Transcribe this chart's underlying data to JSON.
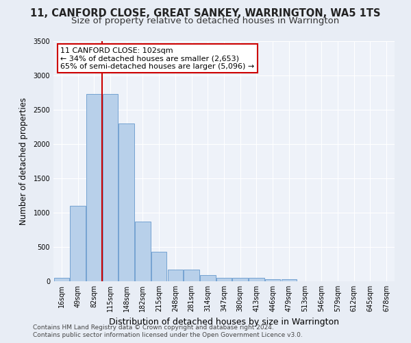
{
  "title": "11, CANFORD CLOSE, GREAT SANKEY, WARRINGTON, WA5 1TS",
  "subtitle": "Size of property relative to detached houses in Warrington",
  "xlabel": "Distribution of detached houses by size in Warrington",
  "ylabel": "Number of detached properties",
  "bar_labels": [
    "16sqm",
    "49sqm",
    "82sqm",
    "115sqm",
    "148sqm",
    "182sqm",
    "215sqm",
    "248sqm",
    "281sqm",
    "314sqm",
    "347sqm",
    "380sqm",
    "413sqm",
    "446sqm",
    "479sqm",
    "513sqm",
    "546sqm",
    "579sqm",
    "612sqm",
    "645sqm",
    "678sqm"
  ],
  "bar_values": [
    50,
    1100,
    2730,
    2730,
    2300,
    870,
    430,
    175,
    175,
    95,
    55,
    55,
    55,
    35,
    30,
    0,
    0,
    0,
    0,
    0,
    0
  ],
  "bar_color": "#b8d0ea",
  "bar_edge_color": "#6699cc",
  "vline_color": "#cc0000",
  "vline_x": 2.5,
  "annotation_text": "11 CANFORD CLOSE: 102sqm\n← 34% of detached houses are smaller (2,653)\n65% of semi-detached houses are larger (5,096) →",
  "annotation_box_facecolor": "#ffffff",
  "annotation_box_edgecolor": "#cc0000",
  "ylim": [
    0,
    3500
  ],
  "yticks": [
    0,
    500,
    1000,
    1500,
    2000,
    2500,
    3000,
    3500
  ],
  "bg_color": "#e8edf5",
  "plot_bg_color": "#eef2f9",
  "grid_color": "#ffffff",
  "footer1": "Contains HM Land Registry data © Crown copyright and database right 2024.",
  "footer2": "Contains public sector information licensed under the Open Government Licence v3.0.",
  "title_fontsize": 10.5,
  "subtitle_fontsize": 9.5,
  "xlabel_fontsize": 9,
  "ylabel_fontsize": 8.5,
  "tick_fontsize": 7,
  "annotation_fontsize": 8,
  "footer_fontsize": 6.5
}
